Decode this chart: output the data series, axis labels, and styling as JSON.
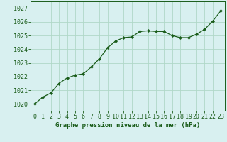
{
  "x": [
    0,
    1,
    2,
    3,
    4,
    5,
    6,
    7,
    8,
    9,
    10,
    11,
    12,
    13,
    14,
    15,
    16,
    17,
    18,
    19,
    20,
    21,
    22,
    23
  ],
  "y": [
    1020.0,
    1020.5,
    1020.8,
    1021.5,
    1021.9,
    1022.1,
    1022.2,
    1022.7,
    1023.3,
    1024.1,
    1024.6,
    1024.85,
    1024.9,
    1025.3,
    1025.35,
    1025.3,
    1025.3,
    1025.0,
    1024.85,
    1024.85,
    1025.1,
    1025.45,
    1026.05,
    1026.8
  ],
  "line_color": "#1a5c1a",
  "marker": "D",
  "marker_size": 2.2,
  "bg_color": "#d8f0f0",
  "grid_color": "#b0d8c8",
  "xlabel": "Graphe pression niveau de la mer (hPa)",
  "xlabel_color": "#1a5c1a",
  "tick_color": "#1a5c1a",
  "ylim": [
    1019.5,
    1027.5
  ],
  "xlim": [
    -0.5,
    23.5
  ],
  "yticks": [
    1020,
    1021,
    1022,
    1023,
    1024,
    1025,
    1026,
    1027
  ],
  "xticks": [
    0,
    1,
    2,
    3,
    4,
    5,
    6,
    7,
    8,
    9,
    10,
    11,
    12,
    13,
    14,
    15,
    16,
    17,
    18,
    19,
    20,
    21,
    22,
    23
  ],
  "spine_color": "#1a5c1a",
  "xlabel_fontsize": 6.5,
  "tick_fontsize": 6.0,
  "linewidth": 0.9
}
